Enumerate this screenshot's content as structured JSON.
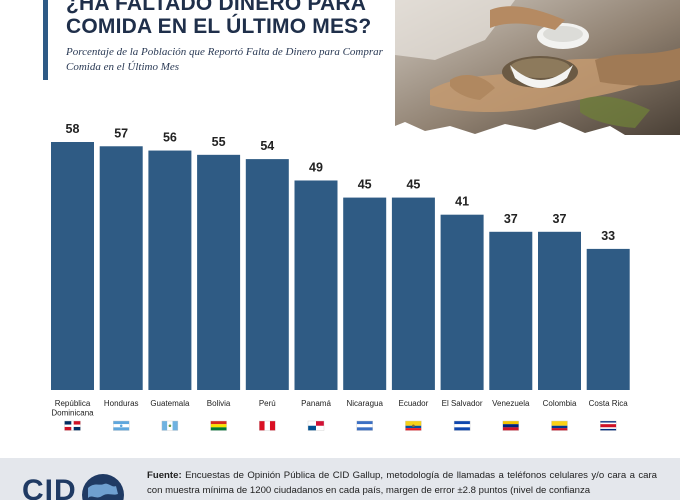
{
  "header": {
    "title_line1": "¿HA FALTADO DINERO PARA",
    "title_line2": "COMIDA EN EL ÚLTIMO MES?",
    "subtitle": "Porcentaje de la Población que Reportó Falta de Dinero para Comprar Comida en el Último Mes"
  },
  "photo": {
    "icon": "food-sharing-photo"
  },
  "colors": {
    "bar": "#2f5b84",
    "accent": "#2e5a86",
    "footer_bg": "#e4e7ec"
  },
  "chart_data": {
    "type": "bar",
    "title": "¿HA FALTADO DINERO PARA COMIDA EN EL ÚLTIMO MES?",
    "subtitle": "Porcentaje de la Población que Reportó Falta de Dinero para Comprar Comida en el Último Mes",
    "categories": [
      "República Dominicana",
      "Honduras",
      "Guatemala",
      "Bolivia",
      "Perú",
      "Panamá",
      "Nicaragua",
      "Ecuador",
      "El Salvador",
      "Venezuela",
      "Colombia",
      "Costa Rica"
    ],
    "category_lines": [
      [
        "República",
        "Dominicana"
      ],
      [
        "Honduras"
      ],
      [
        "Guatemala"
      ],
      [
        "Bolivia"
      ],
      [
        "Perú"
      ],
      [
        "Panamá"
      ],
      [
        "Nicaragua"
      ],
      [
        "Ecuador"
      ],
      [
        "El Salvador"
      ],
      [
        "Venezuela"
      ],
      [
        "Colombia"
      ],
      [
        "Costa Rica"
      ]
    ],
    "values": [
      58,
      57,
      56,
      55,
      54,
      49,
      45,
      45,
      41,
      37,
      37,
      33
    ],
    "flags": [
      "flag-dominican-republic",
      "flag-honduras",
      "flag-guatemala",
      "flag-bolivia",
      "flag-peru",
      "flag-panama",
      "flag-nicaragua",
      "flag-ecuador",
      "flag-el-salvador",
      "flag-venezuela",
      "flag-colombia",
      "flag-costa-rica"
    ],
    "xlabel": "",
    "ylabel": "",
    "ylim": [
      0,
      58
    ],
    "grid": false,
    "data_labels": true
  },
  "footer": {
    "logo_text": "CID",
    "source_label": "Fuente:",
    "source_text": "Encuestas de Opinión Pública de CID Gallup, metodología de llamadas a teléfonos celulares y/o cara a cara con muestra mínima de 1200 ciudadanos en cada país, margen de error ±2.8 puntos (nivel de confianza"
  }
}
